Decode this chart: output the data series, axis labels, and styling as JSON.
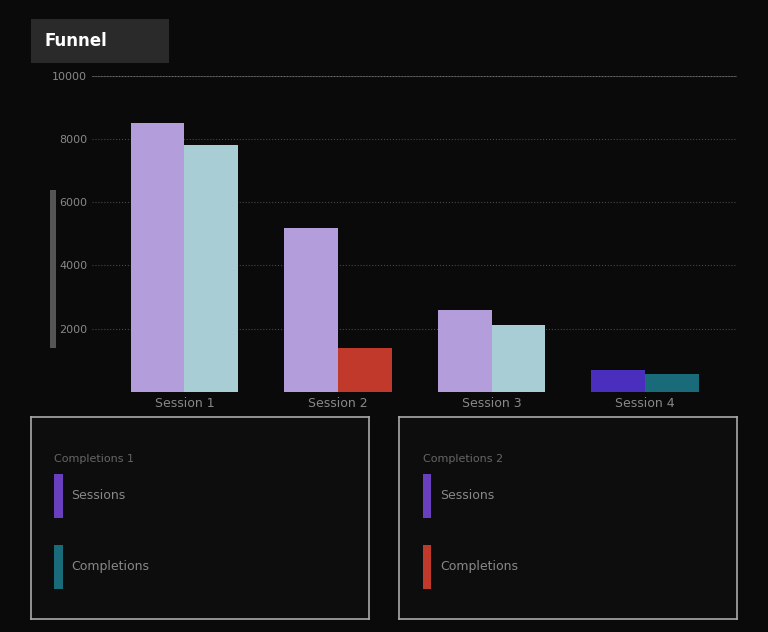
{
  "title": "Funnel",
  "background_color": "#0a0a0a",
  "stages": [
    "Session 1",
    "Session 2",
    "Session 3",
    "Session 4"
  ],
  "sessions": [
    8500,
    5200,
    2600,
    700
  ],
  "completions": [
    7800,
    1400,
    2100,
    550
  ],
  "sessions_colors": [
    "#b39ddb",
    "#b39ddb",
    "#b39ddb",
    "#4a2fbf"
  ],
  "completions_colors": [
    "#a8cdd4",
    "#c0392b",
    "#a8cdd4",
    "#1a6b7a"
  ],
  "ylim": [
    0,
    10000
  ],
  "ytick_values": [
    2000,
    4000,
    6000,
    8000,
    10000
  ],
  "bar_width": 0.35,
  "legend1_title": "Completions 1",
  "legend2_title": "Completions 2",
  "legend_sessions_label": "Sessions",
  "legend_completions_label": "Completions",
  "legend_sessions_color": "#6a3fbf",
  "legend_teal_color": "#1a6b7a",
  "legend_red_color": "#c0392b",
  "grid_color": "#ffffff",
  "tick_color": "#888888",
  "label_color": "#888888",
  "yaxis_bar_color": "#555555"
}
